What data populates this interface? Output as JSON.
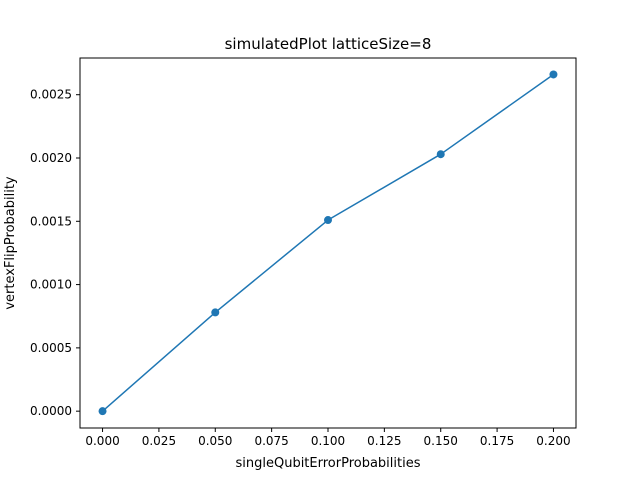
{
  "chart_data": {
    "type": "line",
    "title": "simulatedPlot latticeSize=8",
    "xlabel": "singleQubitErrorProbabilities",
    "ylabel": "vertexFlipProbability",
    "xlim": [
      -0.01,
      0.21
    ],
    "ylim": [
      -0.000133,
      0.00279
    ],
    "grid": false,
    "x_ticks": [
      0.0,
      0.025,
      0.05,
      0.075,
      0.1,
      0.125,
      0.15,
      0.175,
      0.2
    ],
    "x_tick_labels": [
      "0.000",
      "0.025",
      "0.050",
      "0.075",
      "0.100",
      "0.125",
      "0.150",
      "0.175",
      "0.200"
    ],
    "y_ticks": [
      0.0,
      0.0005,
      0.001,
      0.0015,
      0.002,
      0.0025
    ],
    "y_tick_labels": [
      "0.0000",
      "0.0005",
      "0.0010",
      "0.0015",
      "0.0020",
      "0.0025"
    ],
    "series": [
      {
        "color": "#1f77b4",
        "marker": "circle",
        "x": [
          0.0,
          0.05,
          0.1,
          0.15,
          0.2
        ],
        "y": [
          0.0,
          0.00078,
          0.00151,
          0.00203,
          0.00266
        ]
      }
    ]
  }
}
